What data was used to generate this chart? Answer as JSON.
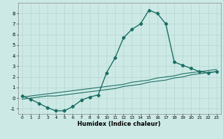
{
  "title": "",
  "xlabel": "Humidex (Indice chaleur)",
  "ylabel": "",
  "xlim": [
    -0.5,
    23.5
  ],
  "ylim": [
    -1.5,
    9.0
  ],
  "xticks": [
    0,
    1,
    2,
    3,
    4,
    5,
    6,
    7,
    8,
    9,
    10,
    11,
    12,
    13,
    14,
    15,
    16,
    17,
    18,
    19,
    20,
    21,
    22,
    23
  ],
  "yticks": [
    -1,
    0,
    1,
    2,
    3,
    4,
    5,
    6,
    7,
    8
  ],
  "bg_color": "#cce9e5",
  "grid_color": "#b8d8d4",
  "line_color": "#1a6e64",
  "series": [
    {
      "x": [
        0,
        1,
        2,
        3,
        4,
        5,
        6,
        7,
        8,
        9,
        10,
        11,
        12,
        13,
        14,
        15,
        16,
        17,
        18,
        19,
        20,
        21,
        22,
        23
      ],
      "y": [
        0.2,
        -0.1,
        -0.5,
        -0.9,
        -1.2,
        -1.2,
        -0.8,
        -0.2,
        0.1,
        0.3,
        2.4,
        3.8,
        5.7,
        6.5,
        7.0,
        8.3,
        8.0,
        7.0,
        3.4,
        3.1,
        2.8,
        2.5,
        2.4,
        2.5
      ],
      "marker": "D",
      "lw": 1.0
    },
    {
      "x": [
        0,
        1,
        2,
        3,
        4,
        5,
        6,
        7,
        8,
        9,
        10,
        11,
        12,
        13,
        14,
        15,
        16,
        17,
        18,
        19,
        20,
        21,
        22,
        23
      ],
      "y": [
        -0.1,
        0.0,
        0.1,
        0.2,
        0.2,
        0.3,
        0.4,
        0.5,
        0.6,
        0.7,
        0.8,
        0.9,
        1.1,
        1.2,
        1.3,
        1.5,
        1.6,
        1.7,
        1.9,
        2.0,
        2.2,
        2.3,
        2.4,
        2.5
      ],
      "marker": null,
      "lw": 0.8
    },
    {
      "x": [
        0,
        1,
        2,
        3,
        4,
        5,
        6,
        7,
        8,
        9,
        10,
        11,
        12,
        13,
        14,
        15,
        16,
        17,
        18,
        19,
        20,
        21,
        22,
        23
      ],
      "y": [
        0.1,
        0.2,
        0.3,
        0.4,
        0.5,
        0.6,
        0.7,
        0.8,
        0.9,
        1.0,
        1.1,
        1.2,
        1.3,
        1.5,
        1.6,
        1.7,
        1.9,
        2.0,
        2.1,
        2.3,
        2.4,
        2.5,
        2.6,
        2.7
      ],
      "marker": null,
      "lw": 0.8
    }
  ]
}
